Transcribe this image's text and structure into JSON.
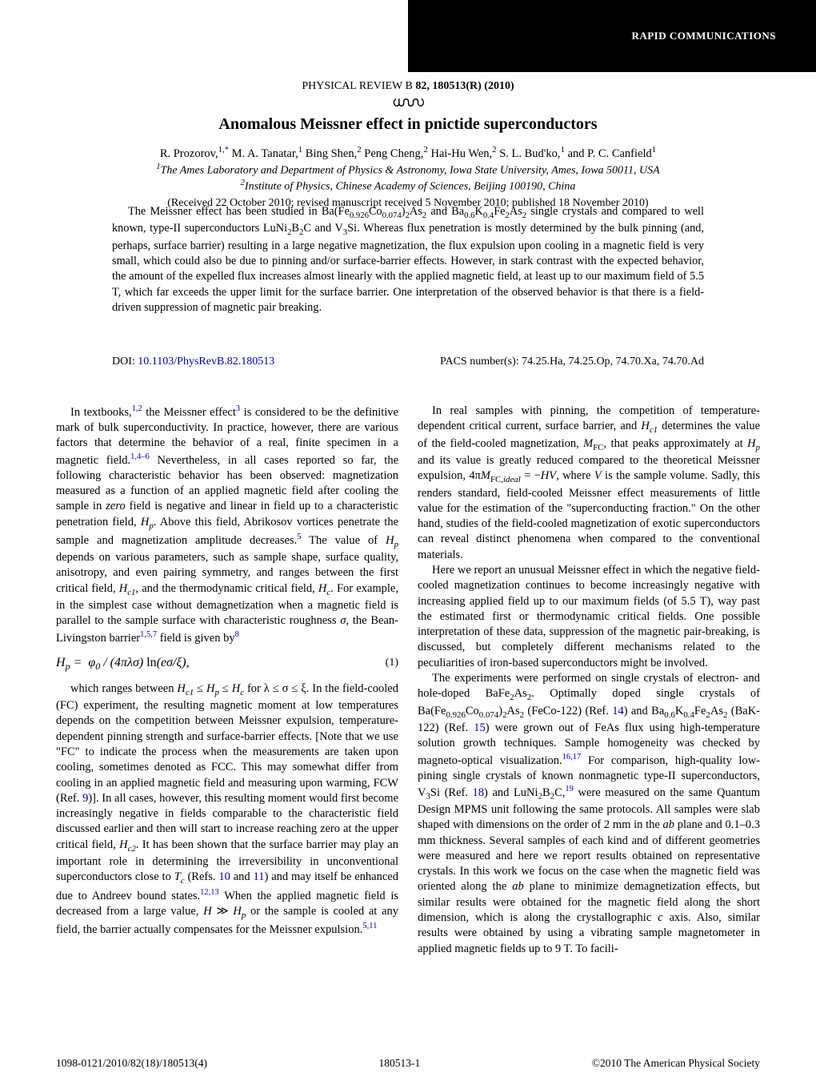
{
  "banner": {
    "text": "RAPID COMMUNICATIONS"
  },
  "header": {
    "journal": "PHYSICAL REVIEW B",
    "volume_issue": "82, 180513(R) (2010)",
    "title": "Anomalous Meissner effect in pnictide superconductors",
    "authors_html": "R. Prozorov,<sup>1,</sup><a class=\"ref-sup\">*</a> M. A. Tanatar,<sup>1</sup> Bing Shen,<sup>2</sup> Peng Cheng,<sup>2</sup> Hai-Hu Wen,<sup>2</sup> S. L. Bud'ko,<sup>1</sup> and P. C. Canfield<sup>1</sup>",
    "affil1_html": "<sup>1</sup>The Ames Laboratory and Department of Physics &amp; Astronomy, Iowa State University, Ames, Iowa 50011, USA",
    "affil2_html": "<sup>2</sup>Institute of Physics, Chinese Academy of Sciences, Beijing 100190, China",
    "dates": "(Received 22 October 2010; revised manuscript received 5 November 2010; published 18 November 2010)"
  },
  "abstract": {
    "text_html": "The Meissner effect has been studied in Ba(Fe<sub>0.926</sub>Co<sub>0.074</sub>)<sub>2</sub>As<sub>2</sub> and Ba<sub>0.6</sub>K<sub>0.4</sub>Fe<sub>2</sub>As<sub>2</sub> single crystals and compared to well known, type-II superconductors LuNi<sub>2</sub>B<sub>2</sub>C and V<sub>3</sub>Si. Whereas flux penetration is mostly determined by the bulk pinning (and, perhaps, surface barrier) resulting in a large negative magnetization, the flux expulsion upon cooling in a magnetic field is very small, which could also be due to pinning and/or surface-barrier effects. However, in stark contrast with the expected behavior, the amount of the expelled flux increases almost linearly with the applied magnetic field, at least up to our maximum field of 5.5 T, which far exceeds the upper limit for the surface barrier. One interpretation of the observed behavior is that there is a field-driven suppression of magnetic pair breaking."
  },
  "doi": {
    "label": "DOI:",
    "link": "10.1103/PhysRevB.82.180513"
  },
  "pacs": {
    "text": "PACS number(s): 74.25.Ha, 74.25.Op, 74.70.Xa, 74.70.Ad"
  },
  "body": {
    "left_p1_html": "In textbooks,<a class=\"ref-sup\">1,2</a> the Meissner effect<a class=\"ref-sup\">3</a> is considered to be the definitive mark of bulk superconductivity. In practice, however, there are various factors that determine the behavior of a real, finite specimen in a magnetic field.<a class=\"ref-sup\">1,4–6</a> Nevertheless, in all cases reported so far, the following characteristic behavior has been observed: magnetization measured as a function of an applied magnetic field after cooling the sample in <i>zero</i> field is negative and linear in field up to a characteristic penetration field, <i>H<sub>p</sub></i>. Above this field, Abrikosov vortices penetrate the sample and magnetization amplitude decreases.<a class=\"ref-sup\">5</a> The value of <i>H<sub>p</sub></i> depends on various parameters, such as sample shape, surface quality, anisotropy, and even pairing symmetry, and ranges between the first critical field, <i>H<sub>c1</sub></i>, and the thermodynamic critical field, <i>H<sub>c</sub></i>. For example, in the simplest case without demagnetization when a magnetic field is parallel to the sample surface with characteristic roughness <i>σ</i>, the Bean-Livingston barrier<a class=\"ref-sup\">1,5,7</a> field is given by<a class=\"ref-sup\">8</a>",
    "equation_html": "<span class=\"math\">H<sub>p</sub> = <span class=\"rm\">&nbsp;</span>φ<sub>0</sub> / (4πλσ) <span class=\"rm\">ln</span>(eσ/ξ)<span class=\"rm\">,</span></span>",
    "eq_num": "(1)",
    "left_p2_html": "which ranges between <i>H<sub>c1</sub></i> ≤ <i>H<sub>p</sub></i> ≤ <i>H<sub>c</sub></i> for λ ≤ σ ≤ ξ. In the field-cooled (FC) experiment, the resulting magnetic moment at low temperatures depends on the competition between Meissner expulsion, temperature-dependent pinning strength and surface-barrier effects. [Note that we use \"FC\" to indicate the process when the measurements are taken upon cooling, sometimes denoted as FCC. This may somewhat differ from cooling in an applied magnetic field and measuring upon warming, FCW (Ref. <a class=\"ref-inline\">9</a>)]. In all cases, however, this resulting moment would first become increasingly negative in fields comparable to the characteristic field discussed earlier and then will start to increase reaching zero at the upper critical field, <i>H<sub>c2</sub></i>. It has been shown that the surface barrier may play an important role in determining the irreversibility in unconventional superconductors close to <i>T<sub>c</sub></i> (Refs. <a class=\"ref-inline\">10</a> and <a class=\"ref-inline\">11</a>) and may itself be enhanced due to Andreev bound states.<a class=\"ref-sup\">12,13</a> When the applied magnetic field is decreased from a large value, <i>H</i> ≫ <i>H<sub>p</sub></i> or the sample is cooled at any field, the barrier actually compensates for the Meissner expulsion.<a class=\"ref-sup\">5,11</a>",
    "right_p1_html": "In real samples with pinning, the competition of temperature-dependent critical current, surface barrier, and <i>H<sub>c1</sub></i> determines the value of the field-cooled magnetization, <i>M</i><sub>FC</sub>, that peaks approximately at <i>H<sub>p</sub></i> and its value is greatly reduced compared to the theoretical Meissner expulsion, 4π<i>M</i><sub>FC,<i>ideal</i></sub> = −<i>HV</i>, where <i>V</i> is the sample volume. Sadly, this renders standard, field-cooled Meissner effect measurements of little value for the estimation of the \"superconducting fraction.\" On the other hand, studies of the field-cooled magnetization of exotic superconductors can reveal distinct phenomena when compared to the conventional materials.",
    "right_p2_html": "Here we report an unusual Meissner effect in which the negative field-cooled magnetization continues to become increasingly negative with increasing applied field up to our maximum fields (of 5.5 T), way past the estimated first or thermodynamic critical fields. One possible interpretation of these data, suppression of the magnetic pair-breaking, is discussed, but completely different mechanisms related to the peculiarities of iron-based superconductors might be involved.",
    "right_p3_html": "The experiments were performed on single crystals of electron- and hole-doped BaFe<sub>2</sub>As<sub>2</sub>. Optimally doped single crystals of Ba(Fe<sub>0.926</sub>Co<sub>0.074</sub>)<sub>2</sub>As<sub>2</sub> (FeCo-122) (Ref. <a class=\"ref-inline\">14</a>) and Ba<sub>0.6</sub>K<sub>0.4</sub>Fe<sub>2</sub>As<sub>2</sub> (BaK-122) (Ref. <a class=\"ref-inline\">15</a>) were grown out of FeAs flux using high-temperature solution growth techniques. Sample homogeneity was checked by magneto-optical visualization.<a class=\"ref-sup\">16,17</a> For comparison, high-quality low-pining single crystals of known nonmagnetic type-II superconductors, V<sub>3</sub>Si (Ref. <a class=\"ref-inline\">18</a>) and LuNi<sub>2</sub>B<sub>2</sub>C,<a class=\"ref-sup\">19</a> were measured on the same Quantum Design MPMS unit following the same protocols. All samples were slab shaped with dimensions on the order of 2 mm in the <i>ab</i> plane and 0.1–0.3 mm thickness. Several samples of each kind and of different geometries were measured and here we report results obtained on representative crystals. In this work we focus on the case when the magnetic field was oriented along the <i>ab</i> plane to minimize demagnetization effects, but similar results were obtained for the magnetic field along the short dimension, which is along the crystallographic <i>c</i> axis. Also, similar results were obtained by using a vibrating sample magnetometer in applied magnetic fields up to 9 T. To facili-"
  },
  "footer": {
    "left": "1098-0121/2010/82(18)/180513(4)",
    "center": "180513-1",
    "right": "©2010 The American Physical Society"
  },
  "colors": {
    "link": "#0000a0",
    "banner_bg": "#000000",
    "banner_fg": "#ffffff",
    "text": "#000000",
    "bg": "#ffffff"
  }
}
